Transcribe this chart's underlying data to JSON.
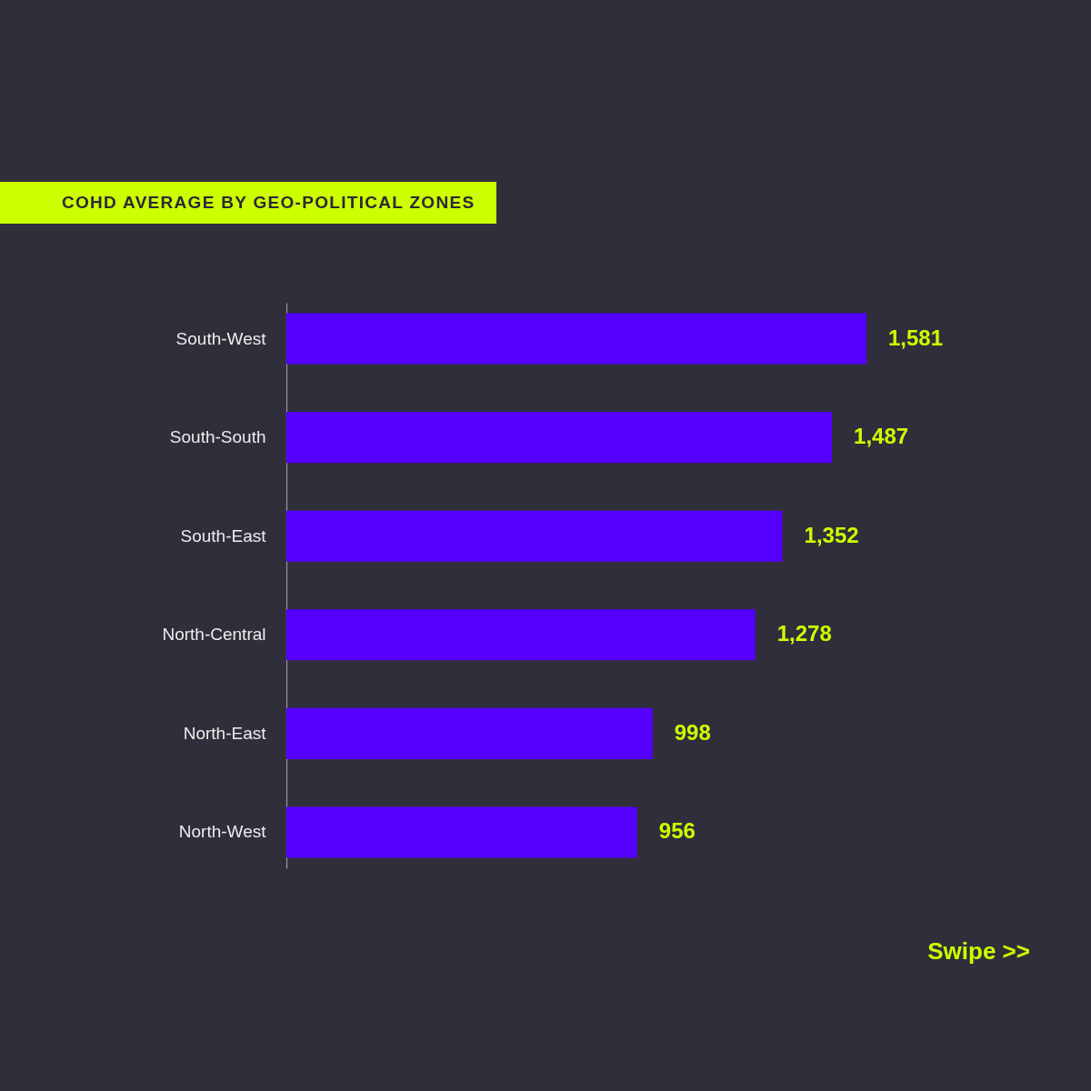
{
  "chart_data": {
    "type": "bar",
    "orientation": "horizontal",
    "title": "COHD AVERAGE BY GEO-POLITICAL ZONES",
    "categories": [
      "South-West",
      "South-South",
      "South-East",
      "North-Central",
      "North-East",
      "North-West"
    ],
    "values": [
      1581,
      1487,
      1352,
      1278,
      998,
      956
    ],
    "color": "#5500ff",
    "value_labels": [
      "1,581",
      "1,487",
      "1,352",
      "1,278",
      "998",
      "956"
    ],
    "annotations": [
      "Swipe >>"
    ]
  }
}
